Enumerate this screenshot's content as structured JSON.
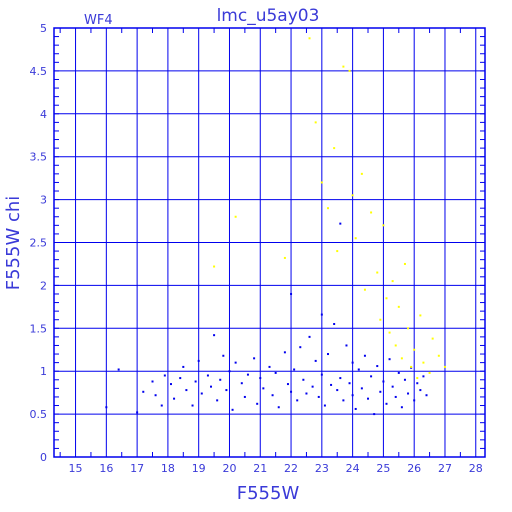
{
  "chart_data": {
    "type": "scatter",
    "title": "lmc_u5ay03",
    "chip_label": "WF4",
    "xlabel": "F555W",
    "ylabel": "F555W chi",
    "xlim": [
      14.3,
      28.3
    ],
    "ylim": [
      0,
      5
    ],
    "grid": true,
    "x_ticks": [
      "15",
      "16",
      "17",
      "18",
      "19",
      "20",
      "21",
      "22",
      "23",
      "24",
      "25",
      "26",
      "27",
      "28"
    ],
    "y_ticks": [
      "0",
      "0.5",
      "1",
      "1.5",
      "2",
      "2.5",
      "3",
      "3.5",
      "4",
      "4.5",
      "5"
    ],
    "series": [
      {
        "color": "#0000ee",
        "points": [
          [
            16.0,
            0.58
          ],
          [
            16.4,
            1.02
          ],
          [
            17.0,
            0.52
          ],
          [
            17.2,
            0.76
          ],
          [
            17.5,
            0.88
          ],
          [
            17.6,
            0.72
          ],
          [
            17.8,
            0.6
          ],
          [
            17.9,
            0.95
          ],
          [
            18.1,
            0.85
          ],
          [
            18.2,
            0.68
          ],
          [
            18.4,
            0.92
          ],
          [
            18.5,
            1.05
          ],
          [
            18.6,
            0.78
          ],
          [
            18.8,
            0.6
          ],
          [
            18.9,
            0.88
          ],
          [
            19.0,
            1.12
          ],
          [
            19.1,
            0.74
          ],
          [
            19.3,
            0.95
          ],
          [
            19.4,
            0.82
          ],
          [
            19.5,
            1.42
          ],
          [
            19.6,
            0.66
          ],
          [
            19.7,
            0.9
          ],
          [
            19.8,
            1.18
          ],
          [
            19.9,
            0.78
          ],
          [
            20.0,
            1.0
          ],
          [
            20.1,
            0.55
          ],
          [
            20.2,
            1.1
          ],
          [
            20.4,
            0.86
          ],
          [
            20.5,
            0.7
          ],
          [
            20.6,
            0.96
          ],
          [
            20.8,
            1.15
          ],
          [
            20.9,
            0.62
          ],
          [
            21.0,
            0.92
          ],
          [
            21.1,
            0.8
          ],
          [
            21.3,
            1.05
          ],
          [
            21.4,
            0.72
          ],
          [
            21.5,
            0.98
          ],
          [
            21.6,
            0.58
          ],
          [
            21.8,
            1.22
          ],
          [
            21.9,
            0.85
          ],
          [
            22.0,
            1.9
          ],
          [
            22.0,
            0.76
          ],
          [
            22.1,
            1.02
          ],
          [
            22.2,
            0.66
          ],
          [
            22.3,
            1.28
          ],
          [
            22.4,
            0.9
          ],
          [
            22.5,
            0.74
          ],
          [
            22.6,
            1.4
          ],
          [
            22.7,
            0.82
          ],
          [
            22.8,
            1.12
          ],
          [
            22.9,
            0.7
          ],
          [
            23.0,
            1.66
          ],
          [
            23.0,
            0.96
          ],
          [
            23.1,
            0.6
          ],
          [
            23.2,
            1.2
          ],
          [
            23.3,
            0.84
          ],
          [
            23.4,
            1.55
          ],
          [
            23.5,
            0.78
          ],
          [
            23.6,
            2.72
          ],
          [
            23.6,
            0.92
          ],
          [
            23.7,
            0.66
          ],
          [
            23.8,
            1.3
          ],
          [
            23.9,
            0.86
          ],
          [
            24.0,
            1.1
          ],
          [
            24.0,
            0.72
          ],
          [
            24.1,
            0.56
          ],
          [
            24.2,
            1.02
          ],
          [
            24.3,
            0.8
          ],
          [
            24.4,
            1.18
          ],
          [
            24.5,
            0.68
          ],
          [
            24.6,
            0.94
          ],
          [
            24.7,
            0.5
          ],
          [
            24.8,
            1.06
          ],
          [
            24.9,
            0.76
          ],
          [
            25.0,
            0.88
          ],
          [
            25.1,
            0.62
          ],
          [
            25.2,
            1.14
          ],
          [
            25.3,
            0.82
          ],
          [
            25.4,
            0.7
          ],
          [
            25.5,
            0.98
          ],
          [
            25.6,
            0.58
          ],
          [
            25.7,
            0.9
          ],
          [
            25.8,
            0.74
          ],
          [
            25.9,
            1.04
          ],
          [
            26.0,
            0.66
          ],
          [
            26.1,
            0.86
          ],
          [
            26.2,
            0.78
          ],
          [
            26.3,
            0.94
          ],
          [
            26.4,
            0.72
          ]
        ]
      },
      {
        "color": "#ffff00",
        "points": [
          [
            19.5,
            2.22
          ],
          [
            20.2,
            2.8
          ],
          [
            21.8,
            2.32
          ],
          [
            22.6,
            4.88
          ],
          [
            22.8,
            3.9
          ],
          [
            23.0,
            3.2
          ],
          [
            23.2,
            2.9
          ],
          [
            23.4,
            3.6
          ],
          [
            23.5,
            2.4
          ],
          [
            23.7,
            4.55
          ],
          [
            23.9,
            4.5
          ],
          [
            24.0,
            3.05
          ],
          [
            24.1,
            2.55
          ],
          [
            24.3,
            3.3
          ],
          [
            24.4,
            1.95
          ],
          [
            24.6,
            2.85
          ],
          [
            24.8,
            2.15
          ],
          [
            24.9,
            1.6
          ],
          [
            25.0,
            2.7
          ],
          [
            25.1,
            1.85
          ],
          [
            25.2,
            1.45
          ],
          [
            25.3,
            2.05
          ],
          [
            25.4,
            1.3
          ],
          [
            25.5,
            1.75
          ],
          [
            25.6,
            1.15
          ],
          [
            25.7,
            2.25
          ],
          [
            25.8,
            1.5
          ],
          [
            25.9,
            1.05
          ],
          [
            26.0,
            1.25
          ],
          [
            26.1,
            0.92
          ],
          [
            26.2,
            1.65
          ],
          [
            26.3,
            1.1
          ],
          [
            26.5,
            0.98
          ],
          [
            26.6,
            1.38
          ],
          [
            26.8,
            1.18
          ],
          [
            27.0,
            1.05
          ]
        ]
      }
    ]
  }
}
